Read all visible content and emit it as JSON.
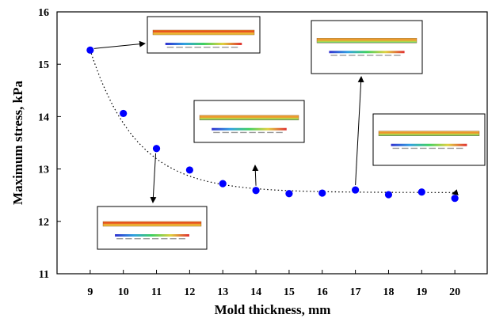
{
  "chart_data": {
    "type": "scatter",
    "title": "",
    "xlabel": "Mold thickness, mm",
    "ylabel": "Maximum stress, kPa",
    "xlim": [
      8,
      21
    ],
    "ylim": [
      11,
      16
    ],
    "x_ticks": [
      9,
      10,
      11,
      12,
      13,
      14,
      15,
      16,
      17,
      18,
      19,
      20
    ],
    "y_ticks": [
      11,
      12,
      13,
      14,
      15,
      16
    ],
    "grid": false,
    "legend": "none",
    "series": [
      {
        "x": [
          9,
          10,
          11,
          12,
          13,
          14,
          15,
          16,
          17,
          18,
          19,
          20
        ],
        "values": [
          15.27,
          14.06,
          13.39,
          12.98,
          12.72,
          12.59,
          12.53,
          12.54,
          12.6,
          12.51,
          12.56,
          12.44
        ],
        "color": "#0000ff",
        "marker": "circle"
      }
    ],
    "trendline": {
      "style": "dotted",
      "color": "#000000"
    },
    "insets": [
      {
        "name": "stress-contour-inset",
        "points_to_x": 9
      },
      {
        "name": "stress-contour-inset",
        "points_to_x": 11
      },
      {
        "name": "stress-contour-inset",
        "points_to_x": 14
      },
      {
        "name": "stress-contour-inset",
        "points_to_x": 17
      },
      {
        "name": "stress-contour-inset",
        "points_to_x": 20
      }
    ]
  }
}
